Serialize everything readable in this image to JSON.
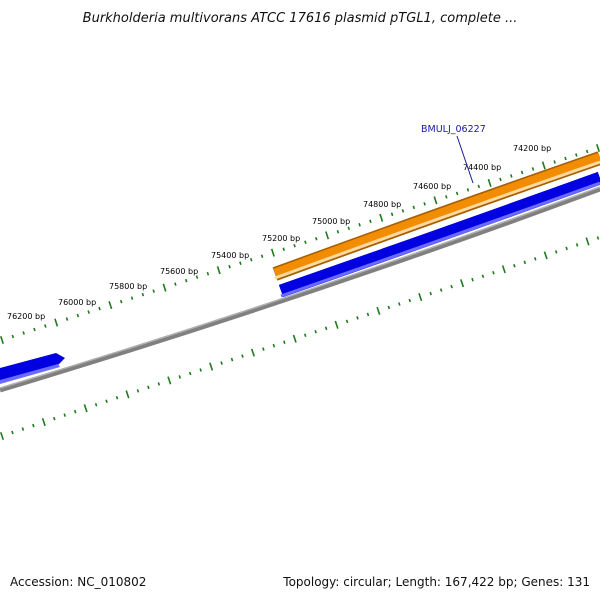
{
  "title": "Burkholderia multivorans ATCC 17616 plasmid pTGL1, complete ...",
  "footer": {
    "accession": "Accession: NC_010802",
    "summary": "Topology: circular; Length: 167,422 bp; Genes: 131"
  },
  "colors": {
    "tick": "#1f7a1f",
    "gene_forward": "#f28c00",
    "gene_forward_edge": "#a85f00",
    "gene_reverse": "#0000e0",
    "gene_reverse_light": "#6b6bff",
    "backbone": "#808080",
    "label_line": "#1a1a99"
  },
  "map": {
    "ticks_outer": [
      "76200 bp",
      "76000 bp",
      "75800 bp",
      "75600 bp",
      "75400 bp",
      "75200 bp",
      "75000 bp",
      "74800 bp",
      "74600 bp",
      "74400 bp",
      "74200 bp"
    ],
    "gene_label": "BMULJ_06227"
  }
}
